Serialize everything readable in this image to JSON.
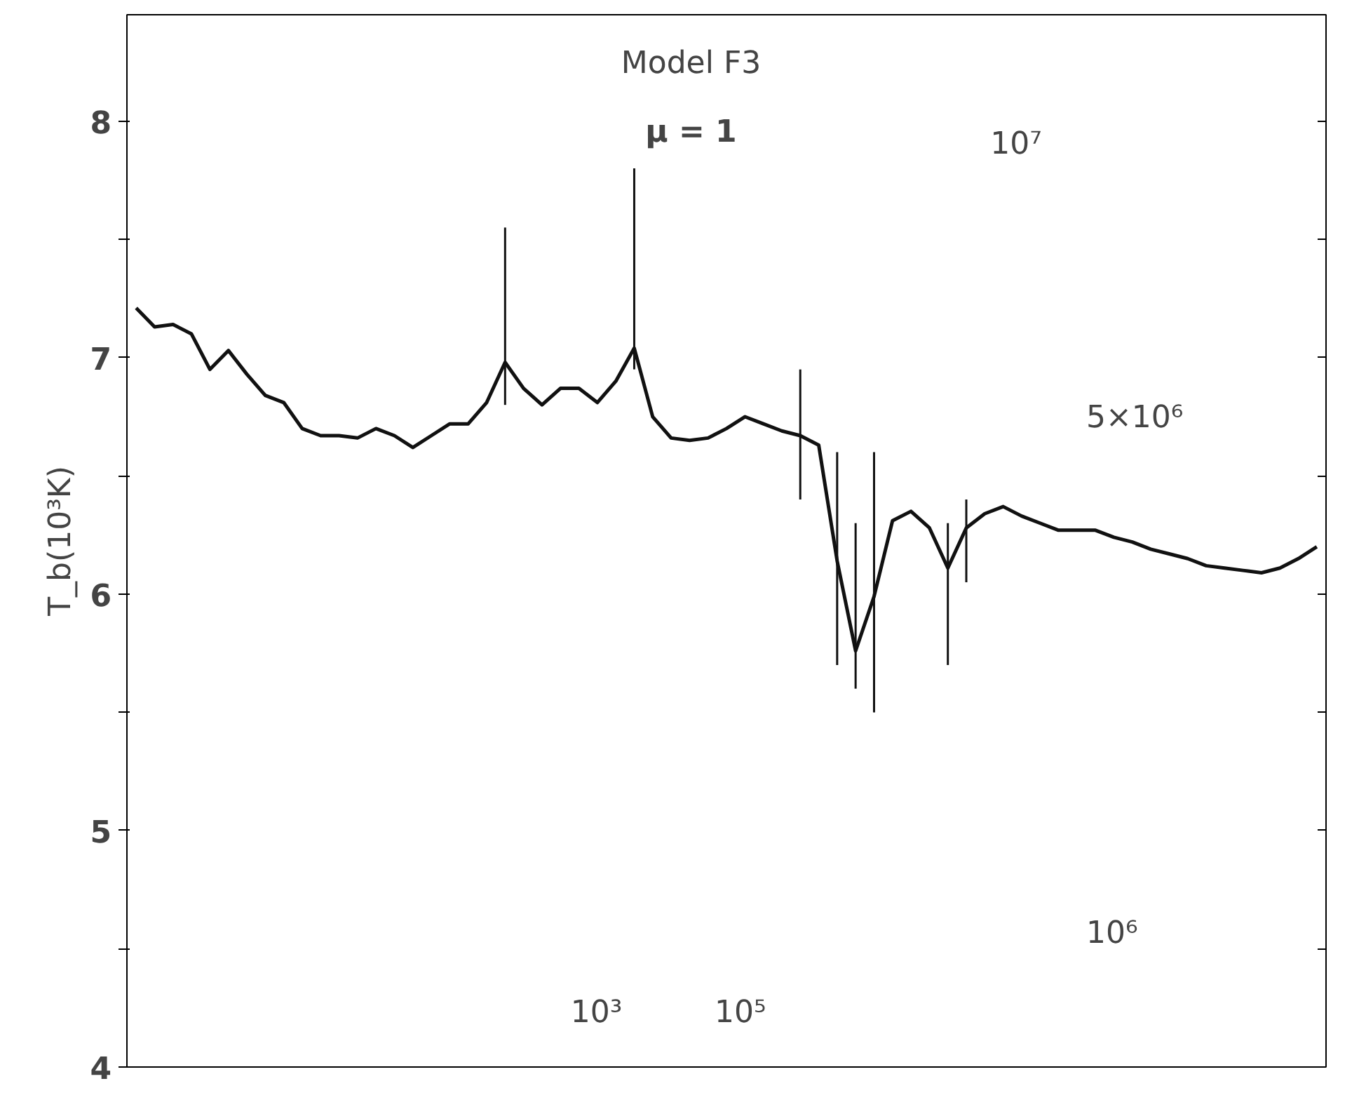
{
  "chart_data": {
    "type": "line",
    "title": "Model F3",
    "subtitle": "μ = 1",
    "ylabel": "T_b(10³K)",
    "categories": [
      null,
      null,
      null,
      null,
      null,
      null,
      null,
      null,
      null,
      null,
      null,
      null,
      null,
      null,
      null,
      null,
      null,
      null,
      null,
      null,
      null,
      null,
      null,
      null,
      null,
      null,
      null,
      null,
      null,
      null,
      null,
      null,
      null,
      null,
      null,
      null,
      null,
      null,
      null,
      null,
      null,
      null,
      null,
      null,
      null,
      null,
      null,
      null,
      null,
      null,
      null,
      null,
      null,
      null,
      null,
      null,
      null,
      null,
      null,
      null,
      null,
      null,
      null,
      null,
      null
    ],
    "series": [
      {
        "color": "#111111",
        "values": [
          7.21,
          7.13,
          7.14,
          7.1,
          6.95,
          7.03,
          6.93,
          6.84,
          6.81,
          6.7,
          6.67,
          6.67,
          6.66,
          6.7,
          6.67,
          6.62,
          6.67,
          6.72,
          6.72,
          6.81,
          6.98,
          6.87,
          6.8,
          6.87,
          6.87,
          6.81,
          6.9,
          7.04,
          6.75,
          6.66,
          6.65,
          6.66,
          6.7,
          6.75,
          6.72,
          6.69,
          6.67,
          6.63,
          6.14,
          5.76,
          5.99,
          6.31,
          6.35,
          6.28,
          6.11,
          6.28,
          6.34,
          6.37,
          6.33,
          6.3,
          6.27,
          6.27,
          6.27,
          6.24,
          6.22,
          6.19,
          6.17,
          6.15,
          6.12,
          6.11,
          6.1,
          6.09,
          6.11,
          6.15,
          6.2
        ],
        "errors": [
          null,
          null,
          null,
          null,
          null,
          null,
          null,
          null,
          null,
          null,
          null,
          null,
          null,
          null,
          null,
          null,
          null,
          null,
          null,
          null,
          [
            6.8,
            7.55
          ],
          null,
          null,
          null,
          null,
          null,
          null,
          [
            6.95,
            7.8
          ],
          null,
          null,
          null,
          null,
          null,
          null,
          null,
          null,
          [
            6.4,
            6.95
          ],
          null,
          [
            5.7,
            6.6
          ],
          [
            5.6,
            6.3
          ],
          [
            5.5,
            6.6
          ],
          null,
          null,
          null,
          [
            5.7,
            6.3
          ],
          [
            6.05,
            6.4
          ],
          null,
          null,
          null,
          null,
          null,
          null,
          null,
          null,
          null,
          null,
          null,
          null,
          null,
          null,
          null,
          null,
          null,
          null,
          null
        ]
      }
    ],
    "ylim": [
      4,
      8.45
    ],
    "yticks": [
      4,
      {
        "value": 4.5,
        "label": null
      },
      5,
      {
        "value": 5.5,
        "label": null
      },
      6,
      {
        "value": 6.5,
        "label": null
      },
      7,
      {
        "value": 7.5,
        "label": null
      },
      8
    ],
    "annotations": [
      "10⁷",
      "5×10⁶",
      "10⁶",
      "10⁵",
      "10³"
    ],
    "tick_labels": "y",
    "grid": false,
    "marker": "none",
    "line_style": "solid"
  }
}
